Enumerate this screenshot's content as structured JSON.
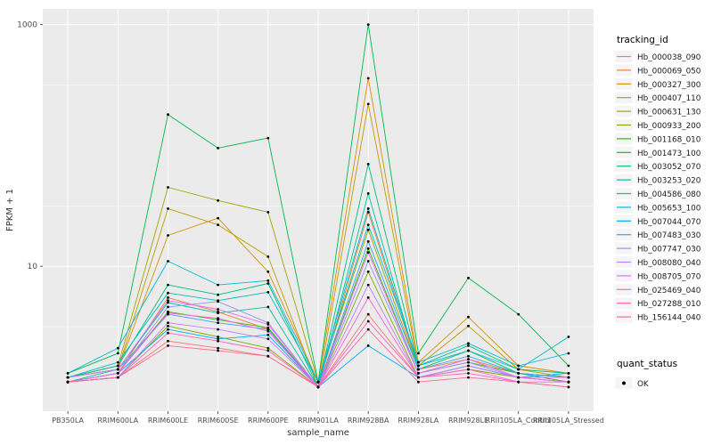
{
  "chart_data": {
    "type": "line",
    "title": "",
    "xlabel": "sample_name",
    "ylabel": "FPKM + 1",
    "y_scale": "log10",
    "panel_bg": "#EBEBEB",
    "grid_color": "#FFFFFF",
    "point_color": "#000000",
    "tick_text_color": "#4D4D4D",
    "axis_title_color": "#333333",
    "ylim_log10": [
      -0.2,
      3.13
    ],
    "y_ticks": [
      {
        "value": 10,
        "label": "10"
      },
      {
        "value": 1000,
        "label": "1000"
      }
    ],
    "y_minor_ticks": [
      3.162,
      31.62,
      316.2
    ],
    "categories": [
      "PB350LA",
      "RRIM600LA",
      "RRIM600LE",
      "RRIM600SE",
      "RRIM600PE",
      "RRIM901LA",
      "RRIM928BA",
      "RRIM928LA",
      "RRIM928LE",
      "RRII105LA_Control",
      "RRII105LA_Stressed"
    ],
    "legend": {
      "title": "tracking_id",
      "position": "right"
    },
    "quant_legend": {
      "title": "quant_status",
      "items": [
        {
          "label": "OK",
          "marker": "point",
          "color": "#000000"
        }
      ]
    },
    "series": [
      {
        "name": "Hb_000038_090",
        "color": "#F8766D",
        "values": [
          1.1,
          1.2,
          2.4,
          2.1,
          1.8,
          1.0,
          4,
          1.2,
          1.4,
          1.2,
          1.1
        ]
      },
      {
        "name": "Hb_000069_050",
        "color": "#EA8331",
        "values": [
          1.1,
          1.3,
          5.5,
          4.2,
          3.0,
          1.0,
          28,
          1.4,
          1.7,
          1.3,
          1.2
        ]
      },
      {
        "name": "Hb_000327_300",
        "color": "#D89000",
        "values": [
          1.2,
          1.4,
          18,
          25,
          9,
          1.1,
          360,
          1.6,
          3.8,
          1.5,
          1.3
        ]
      },
      {
        "name": "Hb_000407_110",
        "color": "#C09B00",
        "values": [
          1.2,
          1.4,
          30,
          22,
          12,
          1.0,
          220,
          1.5,
          3.2,
          1.4,
          1.2
        ]
      },
      {
        "name": "Hb_000631_130",
        "color": "#A3A500",
        "values": [
          1.2,
          1.5,
          45,
          35,
          28,
          1.1,
          20,
          1.4,
          2.0,
          1.3,
          1.2
        ]
      },
      {
        "name": "Hb_000933_200",
        "color": "#7CAE00",
        "values": [
          1.1,
          1.2,
          3.2,
          2.6,
          2.1,
          1.0,
          9,
          1.2,
          1.4,
          1.2,
          1.1
        ]
      },
      {
        "name": "Hb_001168_010",
        "color": "#39B600",
        "values": [
          1.1,
          1.3,
          4.2,
          3.6,
          3.1,
          1.0,
          14,
          1.3,
          1.6,
          1.3,
          1.1
        ]
      },
      {
        "name": "Hb_001473_100",
        "color": "#00BB4E",
        "values": [
          1.3,
          1.9,
          180,
          95,
          115,
          1.1,
          1000,
          1.9,
          8,
          4,
          1.5
        ]
      },
      {
        "name": "Hb_003052_070",
        "color": "#00BF7D",
        "values": [
          1.2,
          1.5,
          7,
          5.8,
          7.2,
          1.0,
          70,
          1.5,
          2.2,
          1.4,
          1.3
        ]
      },
      {
        "name": "Hb_003253_020",
        "color": "#00C1A3",
        "values": [
          1.1,
          1.4,
          5,
          4.1,
          4.6,
          1.0,
          40,
          1.4,
          2.0,
          1.3,
          1.2
        ]
      },
      {
        "name": "Hb_004586_080",
        "color": "#00BFC4",
        "values": [
          1.2,
          1.6,
          6,
          5.2,
          6.1,
          1.1,
          30,
          1.5,
          2.0,
          1.4,
          2.6
        ]
      },
      {
        "name": "Hb_005653_100",
        "color": "#00BBDA",
        "values": [
          1.3,
          2.1,
          11,
          7,
          7.6,
          1.1,
          22,
          1.6,
          2.3,
          1.5,
          1.9
        ]
      },
      {
        "name": "Hb_007044_070",
        "color": "#00B0F6",
        "values": [
          1.1,
          1.3,
          3,
          2.5,
          2.7,
          1.0,
          2.2,
          1.2,
          1.5,
          1.2,
          1.3
        ]
      },
      {
        "name": "Hb_007483_030",
        "color": "#35A2FF",
        "values": [
          1.2,
          1.4,
          4,
          3.4,
          3.0,
          1.0,
          16,
          1.4,
          1.8,
          1.3,
          1.2
        ]
      },
      {
        "name": "Hb_007747_030",
        "color": "#9590FF",
        "values": [
          1.1,
          1.3,
          4.6,
          5.1,
          3.4,
          1.0,
          11,
          1.3,
          1.6,
          1.2,
          1.1
        ]
      },
      {
        "name": "Hb_008080_040",
        "color": "#C77CFF",
        "values": [
          1.1,
          1.2,
          3.4,
          3.0,
          2.5,
          1.0,
          7,
          1.2,
          1.5,
          1.2,
          1.1
        ]
      },
      {
        "name": "Hb_008705_070",
        "color": "#E76BF3",
        "values": [
          1.2,
          1.4,
          5.2,
          4.4,
          3.3,
          1.0,
          13,
          1.3,
          1.7,
          1.2,
          1.2
        ]
      },
      {
        "name": "Hb_025469_040",
        "color": "#FA62DB",
        "values": [
          1.1,
          1.3,
          4.1,
          3.7,
          2.9,
          1.0,
          5.5,
          1.2,
          1.4,
          1.1,
          1.1
        ]
      },
      {
        "name": "Hb_027288_010",
        "color": "#FF62BC",
        "values": [
          1.1,
          1.2,
          2.8,
          2.4,
          2.0,
          1.0,
          3.5,
          1.2,
          1.3,
          1.1,
          1.0
        ]
      },
      {
        "name": "Hb_156144_040",
        "color": "#FF6A98",
        "values": [
          1.1,
          1.2,
          2.2,
          2.0,
          1.8,
          1.0,
          3.0,
          1.1,
          1.2,
          1.1,
          1.0
        ]
      }
    ]
  }
}
